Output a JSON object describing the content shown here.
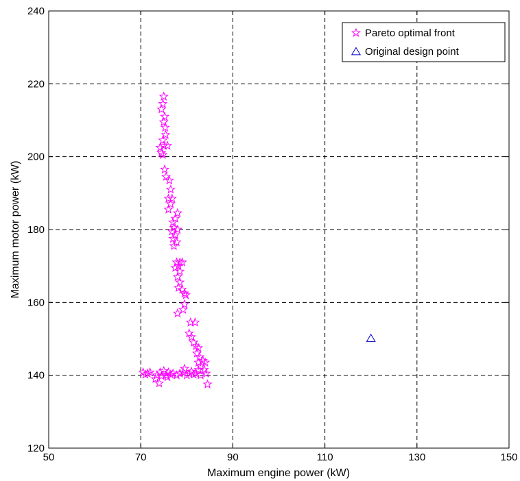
{
  "chart_data": {
    "type": "scatter",
    "xlabel": "Maximum engine power (kW)",
    "ylabel": "Maximum motor power (kW)",
    "xlim": [
      50,
      150
    ],
    "ylim": [
      120,
      240
    ],
    "xticks": [
      50,
      70,
      90,
      110,
      130,
      150
    ],
    "yticks": [
      120,
      140,
      160,
      180,
      200,
      220,
      240
    ],
    "grid": true,
    "legend_position": "top-right",
    "series": [
      {
        "name": "Pareto optimal front",
        "marker": "star",
        "color": "#ff00ff",
        "points": [
          [
            75.0,
            216.5
          ],
          [
            74.8,
            214.5
          ],
          [
            74.5,
            213.0
          ],
          [
            75.2,
            211.0
          ],
          [
            75.0,
            209.5
          ],
          [
            75.3,
            208.0
          ],
          [
            75.4,
            206.0
          ],
          [
            74.8,
            204.5
          ],
          [
            75.0,
            203.0
          ],
          [
            75.8,
            203.0
          ],
          [
            74.2,
            202.5
          ],
          [
            74.5,
            201.0
          ],
          [
            74.8,
            200.5
          ],
          [
            75.2,
            196.5
          ],
          [
            75.5,
            194.5
          ],
          [
            76.2,
            193.5
          ],
          [
            76.5,
            191.0
          ],
          [
            76.8,
            188.5
          ],
          [
            76.0,
            188.5
          ],
          [
            76.5,
            187.0
          ],
          [
            76.0,
            185.5
          ],
          [
            78.0,
            184.5
          ],
          [
            77.5,
            183.0
          ],
          [
            77.0,
            182.0
          ],
          [
            77.2,
            180.5
          ],
          [
            78.0,
            180.0
          ],
          [
            76.8,
            179.5
          ],
          [
            77.5,
            178.5
          ],
          [
            77.0,
            177.5
          ],
          [
            77.8,
            176.5
          ],
          [
            77.2,
            175.5
          ],
          [
            77.8,
            171.0
          ],
          [
            78.5,
            171.0
          ],
          [
            79.0,
            171.0
          ],
          [
            78.2,
            170.0
          ],
          [
            77.5,
            169.5
          ],
          [
            78.5,
            168.5
          ],
          [
            78.0,
            167.0
          ],
          [
            78.5,
            165.5
          ],
          [
            78.2,
            164.0
          ],
          [
            79.0,
            163.5
          ],
          [
            79.5,
            162.5
          ],
          [
            79.8,
            162.0
          ],
          [
            78.0,
            157.0
          ],
          [
            79.5,
            159.5
          ],
          [
            79.2,
            158.0
          ],
          [
            80.8,
            154.5
          ],
          [
            81.8,
            154.5
          ],
          [
            80.5,
            151.5
          ],
          [
            81.0,
            150.5
          ],
          [
            81.5,
            149.0
          ],
          [
            82.0,
            148.0
          ],
          [
            82.5,
            147.5
          ],
          [
            82.2,
            146.0
          ],
          [
            82.8,
            145.0
          ],
          [
            82.5,
            143.5
          ],
          [
            83.5,
            144.0
          ],
          [
            84.0,
            143.5
          ],
          [
            83.0,
            142.5
          ],
          [
            82.5,
            141.5
          ],
          [
            83.8,
            141.5
          ],
          [
            84.2,
            140.5
          ],
          [
            83.0,
            140.0
          ],
          [
            84.5,
            137.5
          ],
          [
            70.5,
            140.8
          ],
          [
            71.0,
            140.2
          ],
          [
            71.5,
            140.5
          ],
          [
            72.0,
            140.8
          ],
          [
            73.5,
            140.0
          ],
          [
            74.2,
            140.8
          ],
          [
            74.5,
            139.8
          ],
          [
            75.0,
            141.2
          ],
          [
            75.5,
            140.0
          ],
          [
            75.8,
            139.5
          ],
          [
            76.0,
            140.8
          ],
          [
            76.5,
            140.2
          ],
          [
            77.0,
            140.5
          ],
          [
            77.8,
            140.0
          ],
          [
            78.5,
            140.5
          ],
          [
            79.2,
            140.8
          ],
          [
            79.5,
            141.8
          ],
          [
            80.0,
            140.0
          ],
          [
            80.5,
            140.5
          ],
          [
            81.0,
            141.0
          ],
          [
            81.5,
            140.2
          ],
          [
            82.0,
            140.5
          ],
          [
            73.2,
            139.0
          ],
          [
            74.0,
            137.8
          ]
        ]
      },
      {
        "name": "Original design point",
        "marker": "triangle",
        "color": "#0000cc",
        "points": [
          [
            120,
            150
          ]
        ]
      }
    ]
  }
}
